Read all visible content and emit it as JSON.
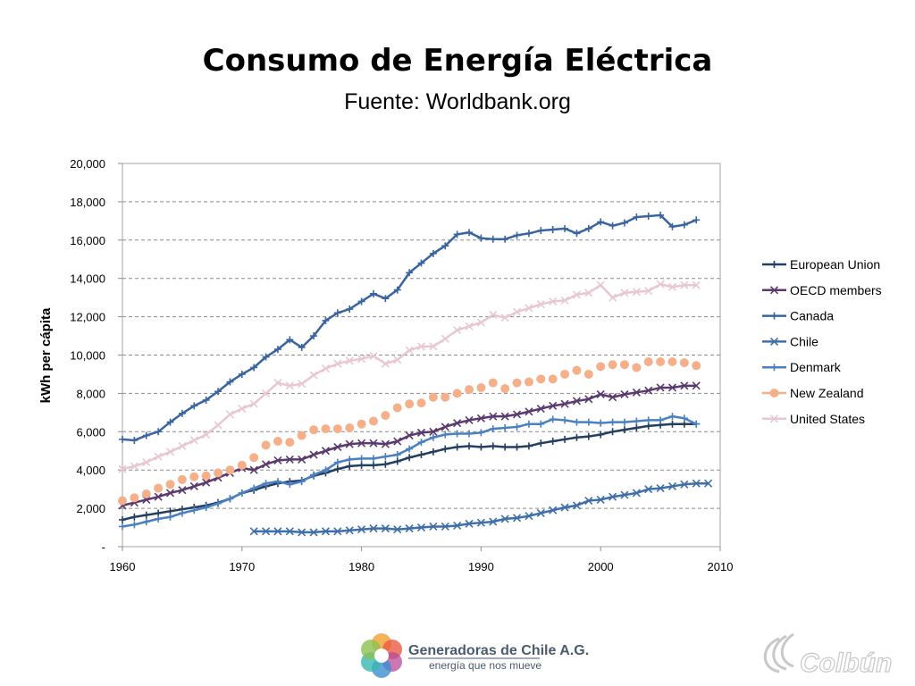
{
  "page": {
    "title": "Consumo de Energía Eléctrica",
    "subtitle": "Fuente: Worldbank.org"
  },
  "footer": {
    "left_logo_name": "Generadoras de Chile A.G.",
    "left_logo_tagline": "energía que nos mueve",
    "right_logo_name": "Colbún"
  },
  "chart_data": {
    "type": "line",
    "title": "",
    "xlabel": "",
    "ylabel": "kWh per  cápita",
    "xlim": [
      1960,
      2010
    ],
    "ylim": [
      0,
      20000
    ],
    "x_ticks": [
      1960,
      1970,
      1980,
      1990,
      2000,
      2010
    ],
    "y_ticks": [
      0,
      2000,
      4000,
      6000,
      8000,
      10000,
      12000,
      14000,
      16000,
      18000,
      20000
    ],
    "y_tick_labels": [
      "-",
      "2,000",
      "4,000",
      "6,000",
      "8,000",
      "10,000",
      "12,000",
      "14,000",
      "16,000",
      "18,000",
      "20,000"
    ],
    "grid": "horizontal dashed",
    "legend_position": "right",
    "series": [
      {
        "name": "European Union",
        "color": "#243f60",
        "marker": "plus",
        "start": 1960,
        "values": [
          1400,
          1550,
          1650,
          1750,
          1850,
          1950,
          2050,
          2150,
          2300,
          2500,
          2800,
          2950,
          3150,
          3300,
          3400,
          3450,
          3700,
          3850,
          4050,
          4200,
          4250,
          4250,
          4300,
          4450,
          4650,
          4800,
          4950,
          5100,
          5200,
          5250,
          5200,
          5250,
          5200,
          5200,
          5250,
          5400,
          5500,
          5600,
          5700,
          5750,
          5850,
          6000,
          6100,
          6200,
          6300,
          6350,
          6400,
          6400,
          6400
        ]
      },
      {
        "name": "OECD members",
        "color": "#5a3a6e",
        "marker": "x",
        "start": 1960,
        "values": [
          2150,
          2300,
          2450,
          2600,
          2800,
          2950,
          3150,
          3350,
          3600,
          3850,
          4100,
          4000,
          4300,
          4500,
          4550,
          4550,
          4800,
          5000,
          5200,
          5350,
          5400,
          5400,
          5350,
          5500,
          5800,
          5950,
          6000,
          6250,
          6450,
          6600,
          6700,
          6800,
          6800,
          6900,
          7050,
          7200,
          7350,
          7450,
          7600,
          7700,
          7950,
          7800,
          7950,
          8050,
          8150,
          8300,
          8300,
          8400,
          8400
        ]
      },
      {
        "name": "Canada",
        "color": "#3a64a0",
        "marker": "plus",
        "start": 1960,
        "values": [
          5600,
          5550,
          5800,
          6000,
          6500,
          6950,
          7350,
          7650,
          8100,
          8600,
          9000,
          9350,
          9900,
          10300,
          10800,
          10400,
          11000,
          11800,
          12200,
          12400,
          12800,
          13200,
          12950,
          13400,
          14300,
          14800,
          15300,
          15700,
          16300,
          16400,
          16100,
          16050,
          16050,
          16250,
          16350,
          16500,
          16550,
          16600,
          16350,
          16600,
          16950,
          16750,
          16900,
          17200,
          17250,
          17300,
          16700,
          16800,
          17050
        ]
      },
      {
        "name": "Chile",
        "color": "#3f6fa8",
        "marker": "x",
        "start": 1971,
        "values": [
          800,
          800,
          800,
          800,
          750,
          750,
          800,
          800,
          850,
          900,
          950,
          950,
          900,
          950,
          1000,
          1050,
          1050,
          1100,
          1200,
          1250,
          1300,
          1450,
          1500,
          1600,
          1750,
          1900,
          2050,
          2150,
          2400,
          2450,
          2600,
          2700,
          2800,
          3000,
          3050,
          3150,
          3250,
          3300,
          3300
        ]
      },
      {
        "name": "Denmark",
        "color": "#4a80c0",
        "marker": "plus",
        "start": 1960,
        "values": [
          1050,
          1150,
          1300,
          1450,
          1550,
          1750,
          1900,
          2050,
          2250,
          2500,
          2800,
          3050,
          3300,
          3400,
          3250,
          3400,
          3750,
          4000,
          4400,
          4550,
          4600,
          4600,
          4700,
          4800,
          5100,
          5450,
          5700,
          5850,
          5900,
          5900,
          5950,
          6150,
          6200,
          6250,
          6400,
          6400,
          6650,
          6600,
          6500,
          6500,
          6450,
          6500,
          6500,
          6550,
          6600,
          6600,
          6800,
          6700,
          6400
        ]
      },
      {
        "name": "New Zealand",
        "color": "#f5b08a",
        "marker": "circle",
        "start": 1960,
        "values": [
          2400,
          2550,
          2750,
          3050,
          3250,
          3500,
          3650,
          3700,
          3850,
          4000,
          4250,
          4650,
          5300,
          5500,
          5450,
          5800,
          6100,
          6150,
          6150,
          6200,
          6400,
          6550,
          6850,
          7250,
          7450,
          7500,
          7800,
          7800,
          8000,
          8200,
          8300,
          8550,
          8250,
          8550,
          8600,
          8750,
          8750,
          9000,
          9200,
          9000,
          9400,
          9500,
          9500,
          9350,
          9650,
          9650,
          9650,
          9600,
          9450
        ]
      },
      {
        "name": "United States",
        "color": "#e8c8d0",
        "marker": "x",
        "start": 1960,
        "values": [
          4050,
          4200,
          4400,
          4700,
          4950,
          5250,
          5550,
          5850,
          6350,
          6900,
          7200,
          7450,
          8000,
          8550,
          8400,
          8500,
          8950,
          9300,
          9550,
          9700,
          9800,
          9950,
          9550,
          9750,
          10250,
          10450,
          10450,
          10850,
          11300,
          11500,
          11700,
          12100,
          11950,
          12250,
          12450,
          12650,
          12800,
          12850,
          13150,
          13250,
          13650,
          13000,
          13250,
          13300,
          13350,
          13700,
          13550,
          13650,
          13650
        ]
      }
    ]
  }
}
